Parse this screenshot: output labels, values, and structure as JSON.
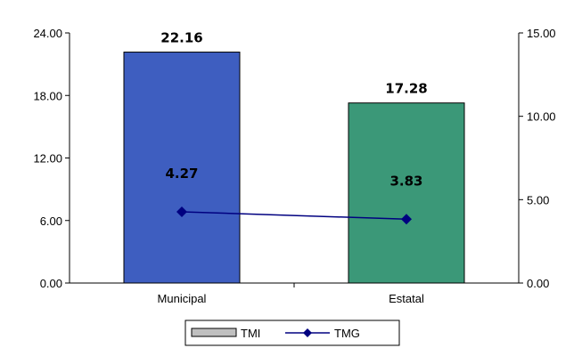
{
  "chart_data": {
    "type": "bar",
    "categories": [
      "Municipal",
      "Estatal"
    ],
    "series": [
      {
        "name": "TMI",
        "type": "bar",
        "axis": "left",
        "values": [
          22.16,
          17.28
        ],
        "labels": [
          "22.16",
          "17.28"
        ],
        "colors": [
          "#3e5ec0",
          "#3b9878"
        ]
      },
      {
        "name": "TMG",
        "type": "line",
        "axis": "right",
        "values": [
          4.27,
          3.83
        ],
        "labels": [
          "4.27",
          "3.83"
        ],
        "color": "#000080"
      }
    ],
    "y_left": {
      "min": 0,
      "max": 24,
      "ticks": [
        "0.00",
        "6.00",
        "12.00",
        "18.00",
        "24.00"
      ]
    },
    "y_right": {
      "min": 0,
      "max": 15,
      "ticks": [
        "0.00",
        "5.00",
        "10.00",
        "15.00"
      ]
    },
    "legend": {
      "position": "bottom",
      "items": [
        "TMI",
        "TMG"
      ]
    },
    "grid": false
  }
}
